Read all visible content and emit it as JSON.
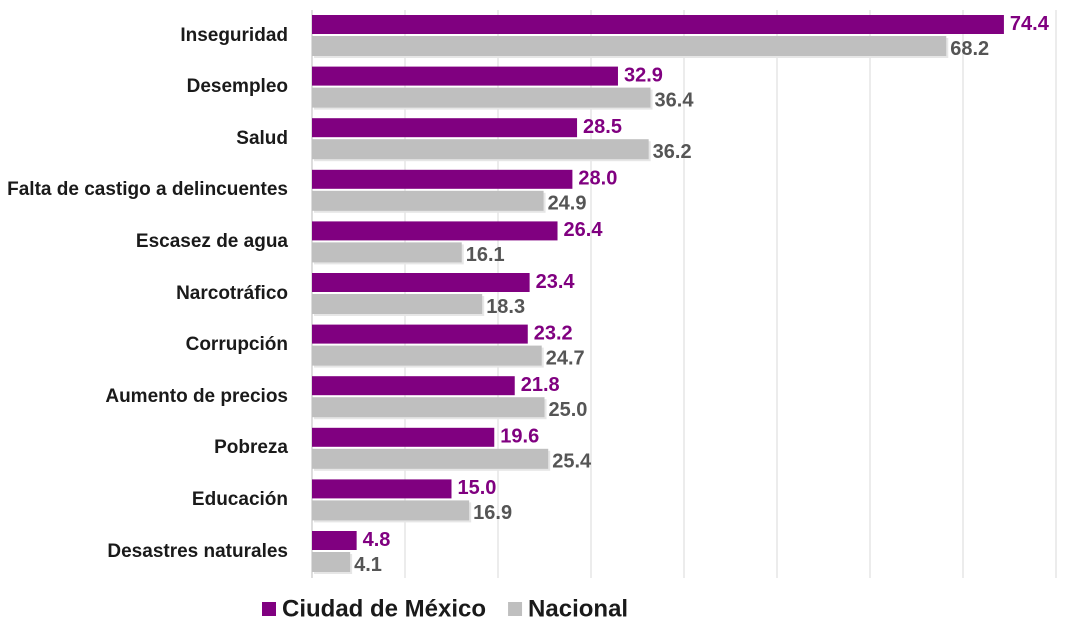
{
  "chart_data": {
    "type": "bar",
    "orientation": "horizontal",
    "categories": [
      "Inseguridad",
      "Desempleo",
      "Salud",
      "Falta de castigo a delincuentes",
      "Escasez de agua",
      "Narcotráfico",
      "Corrupción",
      "Aumento de precios",
      "Pobreza",
      "Educación",
      "Desastres naturales"
    ],
    "series": [
      {
        "name": "Ciudad de México",
        "color": "#800080",
        "label_color": "#800080",
        "values": [
          74.4,
          32.9,
          28.5,
          28.0,
          26.4,
          23.4,
          23.2,
          21.8,
          19.6,
          15.0,
          4.8
        ],
        "value_labels": [
          "74.4",
          "32.9",
          "28.5",
          "28.0",
          "26.4",
          "23.4",
          "23.2",
          "21.8",
          "19.6",
          "15.0",
          "4.8"
        ]
      },
      {
        "name": "Nacional",
        "color": "#bfbfbf",
        "label_color": "#555555",
        "values": [
          68.2,
          36.4,
          36.2,
          24.9,
          16.1,
          18.3,
          24.7,
          25.0,
          25.4,
          16.9,
          4.1
        ],
        "value_labels": [
          "68.2",
          "36.4",
          "36.2",
          "24.9",
          "16.1",
          "18.3",
          "24.7",
          "25.0",
          "25.4",
          "16.9",
          "4.1"
        ]
      }
    ],
    "xlim": [
      0,
      80
    ],
    "xticks": [
      0,
      10,
      20,
      30,
      40,
      50,
      60,
      70,
      80
    ],
    "grid": true,
    "legend": "bottom"
  }
}
